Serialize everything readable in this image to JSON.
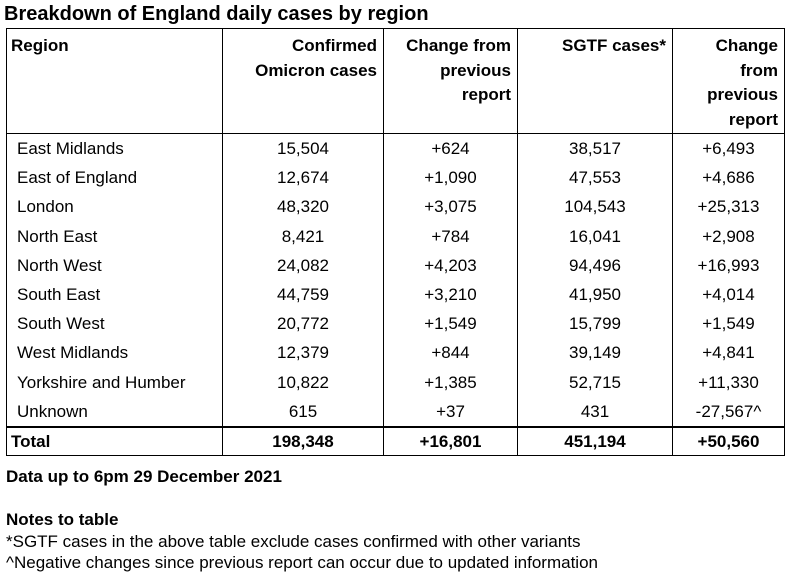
{
  "title": "Breakdown of England daily cases by region",
  "table": {
    "headers": {
      "region": "Region",
      "confirmed_line1": "Confirmed",
      "confirmed_line2": "Omicron cases",
      "change1_line1": "Change from",
      "change1_line2": "previous",
      "change1_line3": "report",
      "sgtf_line1": "SGTF cases*",
      "change2_line1": "Change",
      "change2_line2": "from",
      "change2_line3": "previous",
      "change2_line4": "report"
    },
    "rows": [
      {
        "region": "East Midlands",
        "confirmed": "15,504",
        "change1": "+624",
        "sgtf": "38,517",
        "change2": "+6,493"
      },
      {
        "region": "East of England",
        "confirmed": "12,674",
        "change1": "+1,090",
        "sgtf": "47,553",
        "change2": "+4,686"
      },
      {
        "region": "London",
        "confirmed": "48,320",
        "change1": "+3,075",
        "sgtf": "104,543",
        "change2": "+25,313"
      },
      {
        "region": "North East",
        "confirmed": "8,421",
        "change1": "+784",
        "sgtf": "16,041",
        "change2": "+2,908"
      },
      {
        "region": "North West",
        "confirmed": "24,082",
        "change1": "+4,203",
        "sgtf": "94,496",
        "change2": "+16,993"
      },
      {
        "region": "South East",
        "confirmed": "44,759",
        "change1": "+3,210",
        "sgtf": "41,950",
        "change2": "+4,014"
      },
      {
        "region": "South West",
        "confirmed": "20,772",
        "change1": "+1,549",
        "sgtf": "15,799",
        "change2": "+1,549"
      },
      {
        "region": "West Midlands",
        "confirmed": "12,379",
        "change1": "+844",
        "sgtf": "39,149",
        "change2": "+4,841"
      },
      {
        "region": "Yorkshire and Humber",
        "confirmed": "10,822",
        "change1": "+1,385",
        "sgtf": "52,715",
        "change2": "+11,330"
      },
      {
        "region": "Unknown",
        "confirmed": "615",
        "change1": "+37",
        "sgtf": "431",
        "change2": "-27,567^"
      }
    ],
    "total": {
      "region": "Total",
      "confirmed": "198,348",
      "change1": "+16,801",
      "sgtf": "451,194",
      "change2": "+50,560"
    }
  },
  "data_up_to": "Data up to 6pm 29 December 2021",
  "notes": {
    "title": "Notes to table",
    "note1": "*SGTF cases in the above table exclude cases confirmed with other variants",
    "note2": "^Negative changes since previous report can occur due to updated information"
  }
}
